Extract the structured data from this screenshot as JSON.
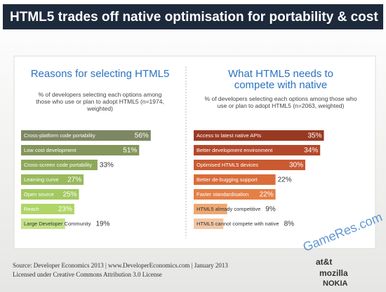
{
  "title": "HTML5 trades off native optimisation for portability & cost",
  "chart_data": [
    {
      "type": "bar",
      "orientation": "horizontal",
      "title": "Reasons for selecting HTML5",
      "subtitle": "% of developers selecting each options among those who use or plan to adopt HTML5 (n=1974, weighted)",
      "categories": [
        "Cross-platform code portability",
        "Low cost development",
        "Cross-screen code portability",
        "Learning curve",
        "Open source",
        "Reach",
        "Large Developer Community"
      ],
      "values": [
        56,
        51,
        33,
        27,
        25,
        23,
        19
      ],
      "value_labels": [
        "56%",
        "51%",
        "33%",
        "27%",
        "25%",
        "23%",
        "19%"
      ],
      "colors": [
        "#7d8763",
        "#84965a",
        "#8ea85a",
        "#98ba5c",
        "#a3c960",
        "#afd567",
        "#c3e285"
      ]
    },
    {
      "type": "bar",
      "orientation": "horizontal",
      "title": "What HTML5 needs to compete with native",
      "subtitle": "% of developers selecting each options among those who use or plan to adopt HTML5 (n=2063, weighted)",
      "categories": [
        "Access to latest native APIs",
        "Better development environment",
        "Optimised HTML5 devices",
        "Better de-bugging support",
        "Faster standardisation",
        "HTML5 already competitive",
        "HTML5 cannot compete with native"
      ],
      "values": [
        35,
        34,
        30,
        22,
        22,
        9,
        8
      ],
      "value_labels": [
        "35%",
        "34%",
        "30%",
        "22%",
        "22%",
        "9%",
        "8%"
      ],
      "colors": [
        "#983a22",
        "#b4482a",
        "#c95a32",
        "#da6d3a",
        "#e48046",
        "#eda873",
        "#f3c6a4"
      ]
    }
  ],
  "source": "Source: Developer Economics 2013 | www.DeveloperEconomics.com | January 2013",
  "license": "Licensed under Creative Commons Attribution 3.0 License",
  "logos": [
    "at&t",
    "mozilla",
    "NOKIA"
  ],
  "watermark": "GameRes.com"
}
